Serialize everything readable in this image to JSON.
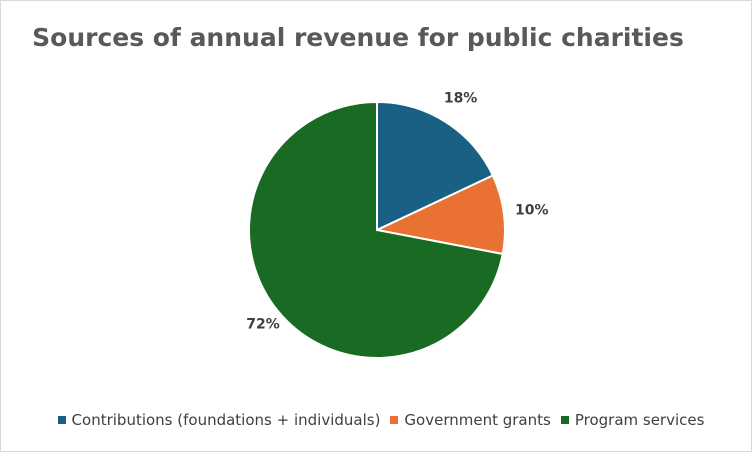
{
  "chart_data": {
    "type": "pie",
    "title": "Sources of annual revenue for public charities",
    "categories": [
      "Contributions (foundations + individuals)",
      "Government grants",
      "Program services"
    ],
    "values": [
      18,
      10,
      72
    ],
    "data_labels": [
      "18%",
      "10%",
      "72%"
    ],
    "colors": [
      "#1a5f84",
      "#e97132",
      "#196b24"
    ],
    "legend_position": "bottom",
    "start_angle": "12 o'clock, clockwise"
  }
}
